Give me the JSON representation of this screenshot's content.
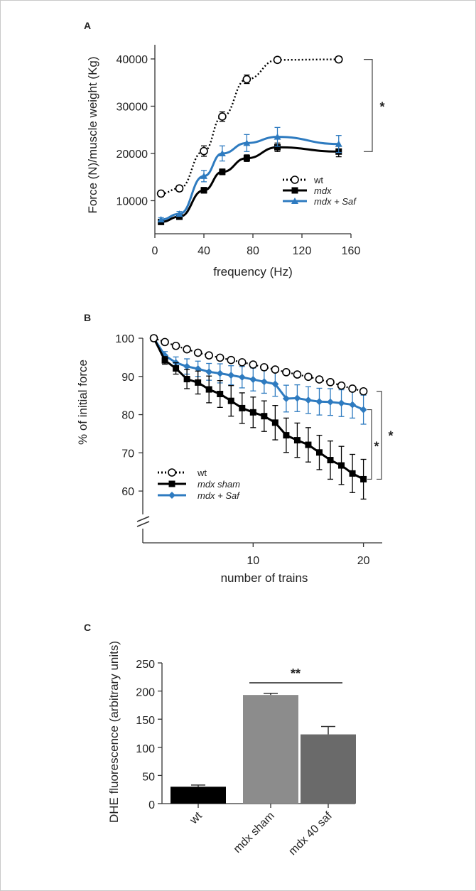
{
  "panels": {
    "a": "A",
    "b": "B",
    "c": "C"
  },
  "chart_data": [
    {
      "type": "line",
      "xlabel": "frequency (Hz)",
      "ylabel": "Force (N)/muscle weight (Kg)",
      "xlim": [
        0,
        160
      ],
      "ylim": [
        3000,
        43000
      ],
      "xticks": [
        0,
        40,
        80,
        120,
        160
      ],
      "yticks": [
        10000,
        20000,
        30000,
        40000
      ],
      "grid": false,
      "legend_position": "lower-right",
      "significance": "*",
      "series": [
        {
          "name": "wt",
          "marker": "open-circle",
          "line": "dotted",
          "color": "#000000",
          "x": [
            5,
            20,
            40,
            55,
            75,
            100,
            150
          ],
          "y": [
            11500,
            12600,
            20500,
            27800,
            35700,
            39800,
            39900
          ],
          "err": [
            600,
            600,
            1100,
            1000,
            900,
            600,
            600
          ]
        },
        {
          "name": "mdx",
          "marker": "square",
          "line": "solid",
          "color": "#000000",
          "x": [
            5,
            20,
            40,
            55,
            75,
            100,
            150
          ],
          "y": [
            5500,
            6600,
            12200,
            16100,
            19000,
            21300,
            20400
          ],
          "err": [
            400,
            500,
            600,
            600,
            700,
            900,
            1100
          ]
        },
        {
          "name": "mdx + Saf",
          "marker": "triangle",
          "line": "solid",
          "color": "#2e7bc0",
          "x": [
            5,
            20,
            40,
            55,
            75,
            100,
            150
          ],
          "y": [
            6000,
            7200,
            15200,
            20000,
            22200,
            23500,
            22000
          ],
          "err": [
            400,
            500,
            1200,
            1600,
            1800,
            2000,
            1800
          ]
        }
      ]
    },
    {
      "type": "line",
      "xlabel": "number of trains",
      "ylabel": "% of initial force",
      "xlim": [
        0,
        21.7
      ],
      "ylim": [
        55,
        100
      ],
      "xticks": [
        10,
        20
      ],
      "yticks": [
        60,
        70,
        80,
        90,
        100
      ],
      "grid": false,
      "legend_position": "lower-left",
      "significance": [
        "*",
        "*"
      ],
      "series": [
        {
          "name": "wt",
          "marker": "open-circle",
          "line": "dotted",
          "color": "#000000",
          "x": [
            1,
            2,
            3,
            4,
            5,
            6,
            7,
            8,
            9,
            10,
            11,
            12,
            13,
            14,
            15,
            16,
            17,
            18,
            19,
            20
          ],
          "y": [
            100,
            99,
            98,
            97.1,
            96.2,
            95.5,
            94.9,
            94.3,
            93.7,
            93.1,
            92.4,
            91.8,
            91.1,
            90.5,
            89.9,
            89.2,
            88.5,
            87.6,
            86.8,
            86.1
          ]
        },
        {
          "name": "mdx sham",
          "marker": "square",
          "line": "solid",
          "color": "#000000",
          "x": [
            1,
            2,
            3,
            4,
            5,
            6,
            7,
            8,
            9,
            10,
            11,
            12,
            13,
            14,
            15,
            16,
            17,
            18,
            19,
            20
          ],
          "y": [
            100,
            94.2,
            92.1,
            89.3,
            88.4,
            86.6,
            85.4,
            83.6,
            81.7,
            80.6,
            79.6,
            77.9,
            74.6,
            73.3,
            72.1,
            70.1,
            68.1,
            66.7,
            64.6,
            63.1
          ],
          "err": [
            0,
            1,
            1.5,
            2.5,
            3,
            3.5,
            3.5,
            4,
            4,
            4,
            4,
            4.5,
            4.5,
            4.5,
            4.5,
            4.5,
            5,
            5,
            5,
            5.2
          ]
        },
        {
          "name": "mdx + Saf",
          "marker": "diamond",
          "line": "solid",
          "color": "#2e7bc0",
          "x": [
            1,
            2,
            3,
            4,
            5,
            6,
            7,
            8,
            9,
            10,
            11,
            12,
            13,
            14,
            15,
            16,
            17,
            18,
            19,
            20
          ],
          "y": [
            100,
            95.5,
            93.6,
            92.6,
            92,
            91.2,
            90.8,
            90.3,
            89.8,
            89.2,
            88.6,
            88,
            84.2,
            84.3,
            83.8,
            83.4,
            83.3,
            83,
            82.6,
            81.3
          ],
          "err": [
            0,
            1,
            1.5,
            2,
            2,
            2.2,
            2.5,
            2.5,
            2.8,
            3,
            3,
            3.2,
            3.5,
            3.5,
            3.5,
            3.5,
            3.5,
            3.5,
            3.5,
            3.8
          ]
        }
      ]
    },
    {
      "type": "bar",
      "ylabel": "DHE fluorescence (arbitrary units)",
      "categories": [
        "wt",
        "mdx sham",
        "mdx 40 saf"
      ],
      "values": [
        30,
        193,
        123
      ],
      "err": [
        3,
        3,
        14
      ],
      "colors": [
        "#000000",
        "#8c8c8c",
        "#6a6a6a"
      ],
      "ylim": [
        0,
        250
      ],
      "yticks": [
        0,
        50,
        100,
        150,
        200,
        250
      ],
      "grid": false,
      "significance": "**"
    }
  ]
}
